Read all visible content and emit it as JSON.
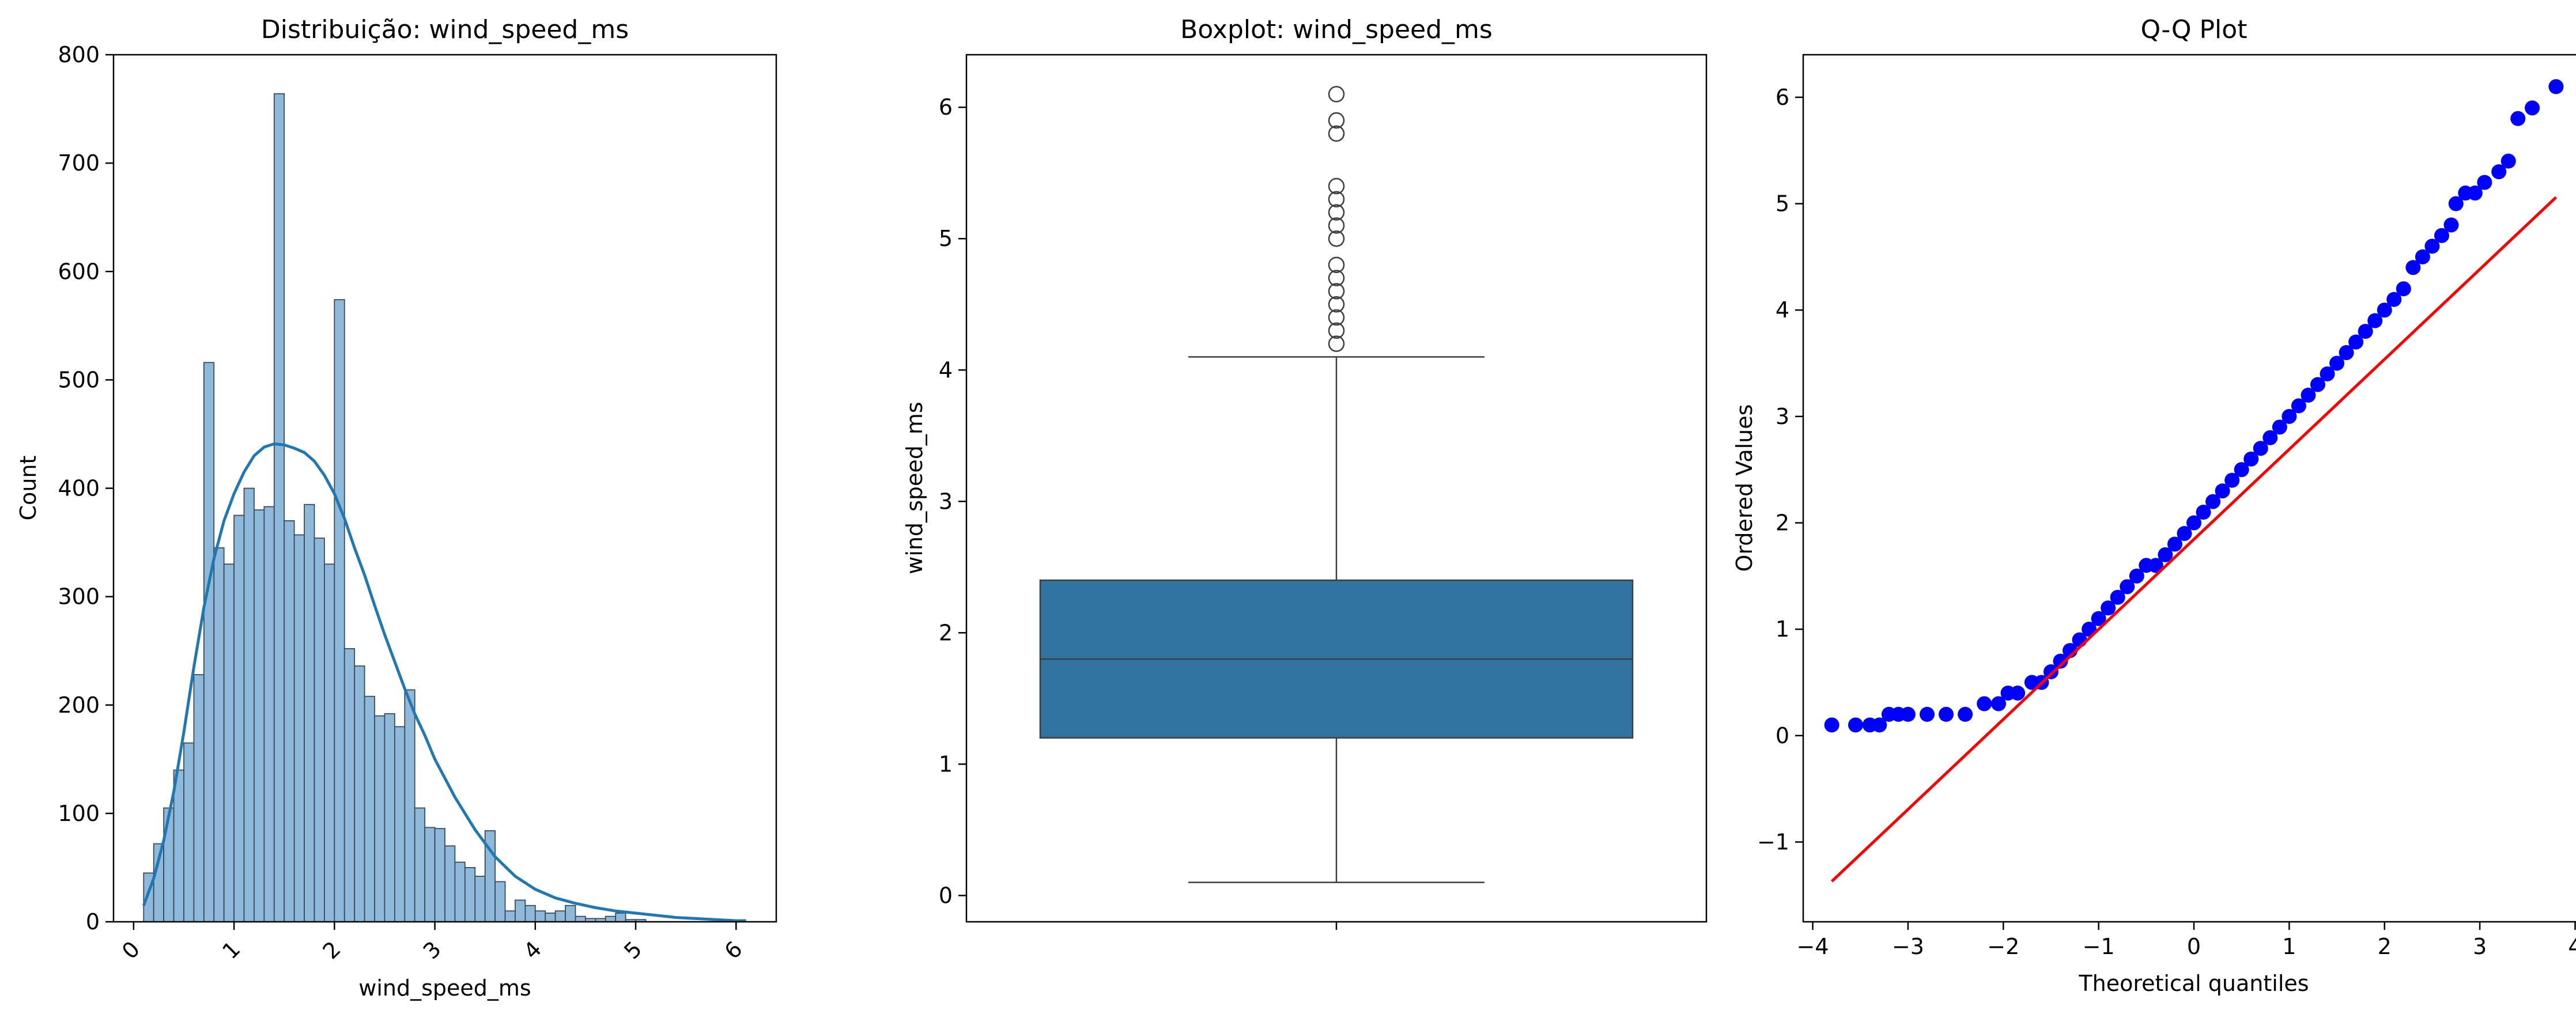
{
  "chart_data": [
    {
      "type": "histogram",
      "title": "Distribuição: wind_speed_ms",
      "xlabel": "wind_speed_ms",
      "ylabel": "Count",
      "xlim": [
        -0.2,
        6.4
      ],
      "ylim": [
        0,
        800
      ],
      "xticks": [
        "0",
        "1",
        "2",
        "3",
        "4",
        "5",
        "6"
      ],
      "xtick_values": [
        0,
        1,
        2,
        3,
        4,
        5,
        6
      ],
      "xtick_rotation": -45,
      "yticks": [
        "0",
        "100",
        "200",
        "300",
        "400",
        "500",
        "600",
        "700",
        "800"
      ],
      "ytick_values": [
        0,
        100,
        200,
        300,
        400,
        500,
        600,
        700,
        800
      ],
      "bin_start": 0.1,
      "bin_width": 0.1,
      "counts": [
        45,
        72,
        105,
        140,
        165,
        228,
        516,
        345,
        330,
        375,
        400,
        380,
        383,
        764,
        370,
        357,
        385,
        354,
        330,
        574,
        252,
        236,
        208,
        190,
        192,
        180,
        214,
        105,
        87,
        86,
        70,
        55,
        50,
        42,
        84,
        37,
        10,
        20,
        15,
        10,
        8,
        10,
        15,
        5,
        3,
        3,
        5,
        8,
        2,
        2
      ],
      "kde": {
        "x": [
          0.1,
          0.2,
          0.3,
          0.4,
          0.5,
          0.6,
          0.7,
          0.8,
          0.9,
          1.0,
          1.1,
          1.2,
          1.3,
          1.4,
          1.5,
          1.6,
          1.7,
          1.8,
          1.9,
          2.0,
          2.1,
          2.2,
          2.3,
          2.4,
          2.5,
          2.6,
          2.7,
          2.8,
          2.9,
          3.0,
          3.2,
          3.4,
          3.6,
          3.8,
          4.0,
          4.2,
          4.4,
          4.6,
          4.8,
          5.0,
          5.2,
          5.4,
          5.6,
          5.8,
          6.0,
          6.1
        ],
        "y": [
          15,
          40,
          75,
          120,
          175,
          235,
          290,
          335,
          370,
          395,
          415,
          430,
          438,
          441,
          440,
          437,
          433,
          425,
          412,
          395,
          372,
          345,
          320,
          292,
          265,
          240,
          215,
          192,
          172,
          150,
          115,
          85,
          60,
          42,
          30,
          22,
          17,
          13,
          10,
          8,
          6,
          4,
          3,
          2,
          1,
          1
        ]
      },
      "colors": {
        "bar_fill": "#8fb9da",
        "bar_edge": "#3b4a59",
        "kde": "#1f77b4"
      }
    },
    {
      "type": "boxplot",
      "title": "Boxplot: wind_speed_ms",
      "ylabel": "wind_speed_ms",
      "ylim": [
        -0.2,
        6.4
      ],
      "yticks": [
        "0",
        "1",
        "2",
        "3",
        "4",
        "5",
        "6"
      ],
      "ytick_values": [
        0,
        1,
        2,
        3,
        4,
        5,
        6
      ],
      "whisker_low": 0.1,
      "q1": 1.2,
      "median": 1.8,
      "q3": 2.4,
      "whisker_high": 4.1,
      "outliers": [
        4.2,
        4.3,
        4.4,
        4.5,
        4.6,
        4.7,
        4.8,
        5.0,
        5.1,
        5.2,
        5.3,
        5.4,
        5.8,
        5.9,
        6.1
      ],
      "colors": {
        "box_fill": "#3274a1",
        "lines": "#3d3d3d"
      }
    },
    {
      "type": "scatter",
      "title": "Q-Q Plot",
      "xlabel": "Theoretical quantiles",
      "ylabel": "Ordered Values",
      "xlim": [
        -4.1,
        4.1
      ],
      "ylim": [
        -1.75,
        6.4
      ],
      "xticks": [
        "−4",
        "−3",
        "−2",
        "−1",
        "0",
        "1",
        "2",
        "3",
        "4"
      ],
      "xtick_values": [
        -4,
        -3,
        -2,
        -1,
        0,
        1,
        2,
        3,
        4
      ],
      "yticks": [
        "−1",
        "0",
        "1",
        "2",
        "3",
        "4",
        "5",
        "6"
      ],
      "ytick_values": [
        -1,
        0,
        1,
        2,
        3,
        4,
        5,
        6
      ],
      "points_x": [
        -3.8,
        -3.55,
        -3.4,
        -3.3,
        -3.2,
        -3.1,
        -3.0,
        -2.8,
        -2.6,
        -2.4,
        -2.2,
        -2.05,
        -1.95,
        -1.85,
        -1.7,
        -1.6,
        -1.5,
        -1.4,
        -1.3,
        -1.2,
        -1.1,
        -1.0,
        -0.9,
        -0.8,
        -0.7,
        -0.6,
        -0.5,
        -0.4,
        -0.3,
        -0.2,
        -0.1,
        0.0,
        0.1,
        0.2,
        0.3,
        0.4,
        0.5,
        0.6,
        0.7,
        0.8,
        0.9,
        1.0,
        1.1,
        1.2,
        1.3,
        1.4,
        1.5,
        1.6,
        1.7,
        1.8,
        1.9,
        2.0,
        2.1,
        2.2,
        2.3,
        2.4,
        2.5,
        2.6,
        2.7,
        2.75,
        2.85,
        2.95,
        3.05,
        3.2,
        3.3,
        3.4,
        3.55,
        3.8
      ],
      "points_y": [
        0.1,
        0.1,
        0.1,
        0.1,
        0.2,
        0.2,
        0.2,
        0.2,
        0.2,
        0.2,
        0.3,
        0.3,
        0.4,
        0.4,
        0.5,
        0.5,
        0.6,
        0.7,
        0.8,
        0.9,
        1.0,
        1.1,
        1.2,
        1.3,
        1.4,
        1.5,
        1.6,
        1.6,
        1.7,
        1.8,
        1.9,
        2.0,
        2.1,
        2.2,
        2.3,
        2.4,
        2.5,
        2.6,
        2.7,
        2.8,
        2.9,
        3.0,
        3.1,
        3.2,
        3.3,
        3.4,
        3.5,
        3.6,
        3.7,
        3.8,
        3.9,
        4.0,
        4.1,
        4.2,
        4.4,
        4.5,
        4.6,
        4.7,
        4.8,
        5.0,
        5.1,
        5.1,
        5.2,
        5.3,
        5.4,
        5.8,
        5.9,
        6.1
      ],
      "fit_line": {
        "x": [
          -3.8,
          3.8
        ],
        "y": [
          -1.37,
          5.06
        ]
      },
      "colors": {
        "points": "#0000ff",
        "fit": "#ff0000"
      }
    }
  ]
}
